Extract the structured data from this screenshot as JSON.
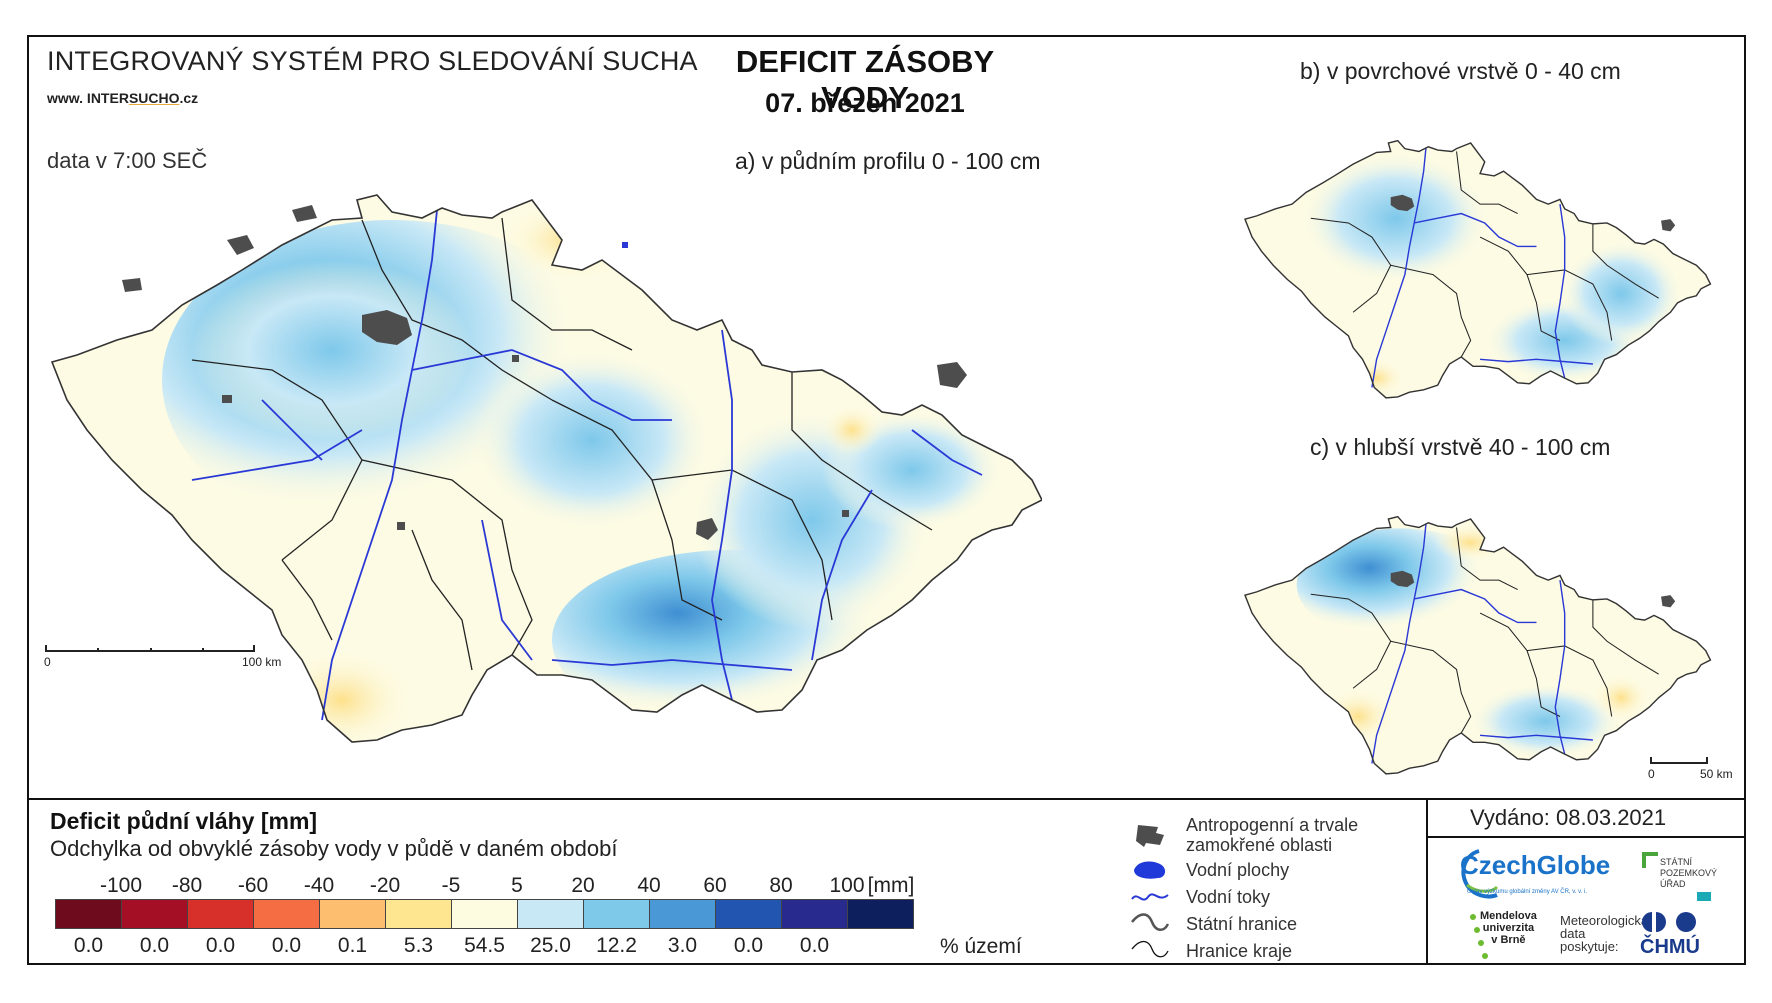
{
  "header": {
    "system_title": "INTEGROVANÝ SYSTÉM PRO SLEDOVÁNÍ SUCHA",
    "website_prefix": "www. INTER",
    "website_mid": "SUCHO",
    "website_suffix": ".cz",
    "data_time": "data v 7:00 SEČ",
    "main_title": "DEFICIT ZÁSOBY VODY",
    "main_date": "07. březen 2021"
  },
  "maps": {
    "a_label": "a) v půdním profilu 0 - 100 cm",
    "b_label": "b) v povrchové vrstvě 0 - 40 cm",
    "c_label": "c) v hlubší vrstvě 40 - 100 cm",
    "scale_a": {
      "start": "0",
      "end": "100 km"
    },
    "scale_small": {
      "start": "0",
      "end": "50 km"
    }
  },
  "legend": {
    "title": "Deficit půdní vláhy  [mm]",
    "subtitle": "Odchylka od obvyklé zásoby vody v půdě v daném období",
    "ticks": [
      "-100",
      "-80",
      "-60",
      "-40",
      "-20",
      "-5",
      "5",
      "20",
      "40",
      "60",
      "80",
      "100"
    ],
    "unit": "[mm]",
    "classes": [
      {
        "color": "#6e0b1d",
        "pct": "0.0"
      },
      {
        "color": "#a50f26",
        "pct": "0.0"
      },
      {
        "color": "#d7302a",
        "pct": "0.0"
      },
      {
        "color": "#f46d43",
        "pct": "0.0"
      },
      {
        "color": "#fdbf6f",
        "pct": "0.1"
      },
      {
        "color": "#fee690",
        "pct": "5.3"
      },
      {
        "color": "#fefce0",
        "pct": "54.5"
      },
      {
        "color": "#c8e8f6",
        "pct": "25.0"
      },
      {
        "color": "#7ec8ea",
        "pct": "12.2"
      },
      {
        "color": "#4a98d6",
        "pct": "3.0"
      },
      {
        "color": "#2155b0",
        "pct": "0.0"
      },
      {
        "color": "#282a8e",
        "pct": "0.0"
      },
      {
        "color": "#0d1f5c",
        "pct": ""
      }
    ],
    "pct_label": "% území"
  },
  "symbols": {
    "urban_line1": "Antropogenní a trvale",
    "urban_line2": "zamokřené oblasti",
    "water_bodies": "Vodní plochy",
    "rivers": "Vodní toky",
    "state_border": "Státní hranice",
    "region_border": "Hranice kraje"
  },
  "footer": {
    "issued": "Vydáno: 08.03.2021",
    "czechglobe": "CzechGlobe",
    "czechglobe_sub": "Ústav výzkumu globální změny AV ČR, v. v. i.",
    "spu_line1": "STÁTNÍ",
    "spu_line2": "POZEMKOVÝ",
    "spu_line3": "ÚŘAD",
    "mendelu_line1": "Mendelova",
    "mendelu_line2": "univerzita",
    "mendelu_line3": "v Brně",
    "met_line1": "Meteorologická",
    "met_line2": "data",
    "met_line3": "poskytuje:",
    "chmu": "ČHMÚ"
  },
  "colors": {
    "urban": "#4d4d4d",
    "river": "#2a39d6",
    "map_base": "#fdfbe3"
  }
}
